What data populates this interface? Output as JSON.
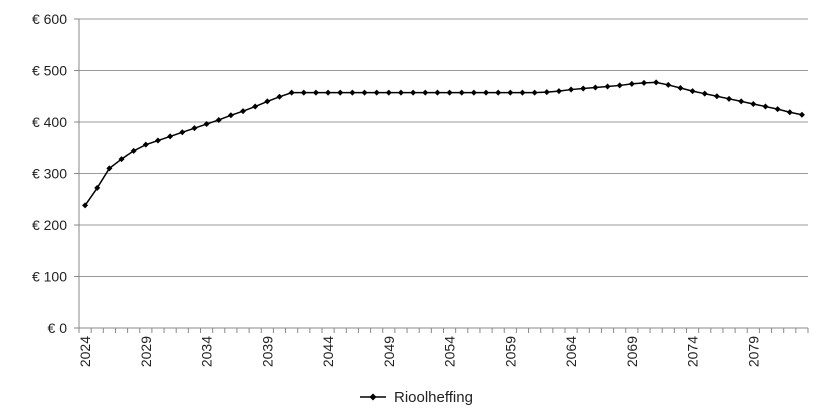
{
  "chart_data": {
    "type": "line",
    "title": "",
    "xlabel": "",
    "ylabel": "",
    "x": [
      2024,
      2025,
      2026,
      2027,
      2028,
      2029,
      2030,
      2031,
      2032,
      2033,
      2034,
      2035,
      2036,
      2037,
      2038,
      2039,
      2040,
      2041,
      2042,
      2043,
      2044,
      2045,
      2046,
      2047,
      2048,
      2049,
      2050,
      2051,
      2052,
      2053,
      2054,
      2055,
      2056,
      2057,
      2058,
      2059,
      2060,
      2061,
      2062,
      2063,
      2064,
      2065,
      2066,
      2067,
      2068,
      2069,
      2070,
      2071,
      2072,
      2073,
      2074,
      2075,
      2076,
      2077,
      2078,
      2079,
      2080,
      2081,
      2082,
      2083
    ],
    "x_tick_labels": [
      "2024",
      "2029",
      "2034",
      "2039",
      "2044",
      "2049",
      "2054",
      "2059",
      "2064",
      "2069",
      "2074",
      "2079"
    ],
    "y_ticks": [
      0,
      100,
      200,
      300,
      400,
      500,
      600
    ],
    "y_tick_labels": [
      "€ 0",
      "€ 100",
      "€ 200",
      "€ 300",
      "€ 400",
      "€ 500",
      "€ 600"
    ],
    "ylim": [
      0,
      600
    ],
    "grid": "horizontal",
    "legend_position": "bottom",
    "series": [
      {
        "name": "Rioolheffing",
        "color": "#000000",
        "marker": "diamond",
        "values": [
          238,
          272,
          310,
          328,
          344,
          356,
          364,
          372,
          380,
          388,
          396,
          404,
          413,
          421,
          430,
          440,
          449,
          457,
          457,
          457,
          457,
          457,
          457,
          457,
          457,
          457,
          457,
          457,
          457,
          457,
          457,
          457,
          457,
          457,
          457,
          457,
          457,
          457,
          458,
          460,
          463,
          465,
          467,
          469,
          471,
          474,
          476,
          477,
          472,
          466,
          460,
          455,
          450,
          445,
          440,
          435,
          430,
          425,
          419,
          414
        ]
      }
    ]
  }
}
